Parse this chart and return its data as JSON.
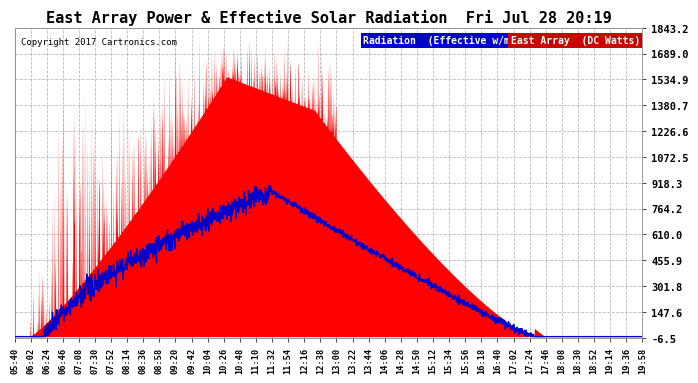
{
  "title": "East Array Power & Effective Solar Radiation  Fri Jul 28 20:19",
  "copyright": "Copyright 2017 Cartronics.com",
  "legend_radiation": "Radiation  (Effective w/m2)",
  "legend_east": "East Array  (DC Watts)",
  "yticks": [
    -6.5,
    147.6,
    301.8,
    455.9,
    610.0,
    764.2,
    918.3,
    1072.5,
    1226.6,
    1380.7,
    1534.9,
    1689.0,
    1843.2
  ],
  "ylim": [
    -6.5,
    1843.2
  ],
  "bg_color": "#ffffff",
  "plot_bg_color": "#ffffff",
  "grid_color": "#aaaaaa",
  "title_color": "#000000",
  "radiation_color": "#0000cc",
  "east_array_color": "#ff0000",
  "east_array_fill": "#ff0000",
  "time_labels": [
    "05:40",
    "06:02",
    "06:24",
    "06:46",
    "07:08",
    "07:30",
    "07:52",
    "08:14",
    "08:36",
    "08:58",
    "09:20",
    "09:42",
    "10:04",
    "10:26",
    "10:48",
    "11:10",
    "11:32",
    "11:54",
    "12:16",
    "12:38",
    "13:00",
    "13:22",
    "13:44",
    "14:06",
    "14:28",
    "14:50",
    "15:12",
    "15:34",
    "15:56",
    "16:18",
    "16:40",
    "17:02",
    "17:24",
    "17:46",
    "18:08",
    "18:30",
    "18:52",
    "19:14",
    "19:36",
    "19:58"
  ],
  "radiation_legend_bg": "#0000cc",
  "east_legend_bg": "#cc0000"
}
